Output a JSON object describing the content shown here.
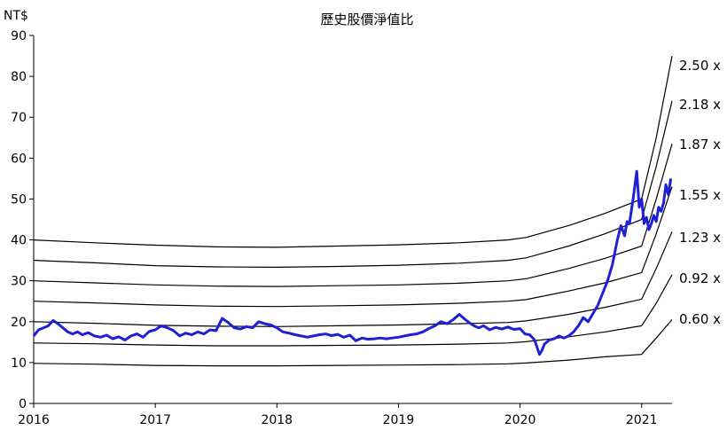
{
  "chart_data": {
    "type": "line",
    "title": "歷史股價淨值比",
    "ylabel": "NT$",
    "xlabel": "",
    "ylim": [
      0,
      90
    ],
    "yticks": [
      0,
      10,
      20,
      30,
      40,
      50,
      60,
      70,
      80,
      90
    ],
    "xlim": [
      2016.0,
      2021.25
    ],
    "xticks": [
      2016,
      2017,
      2018,
      2019,
      2020,
      2021
    ],
    "grid": false,
    "colors": {
      "price": "#1f1fd6",
      "band": "#000000"
    },
    "price_series": {
      "x": [
        2016.0,
        2016.04,
        2016.08,
        2016.12,
        2016.16,
        2016.2,
        2016.24,
        2016.28,
        2016.32,
        2016.36,
        2016.4,
        2016.45,
        2016.5,
        2016.55,
        2016.6,
        2016.65,
        2016.7,
        2016.75,
        2016.8,
        2016.85,
        2016.9,
        2016.95,
        2017.0,
        2017.05,
        2017.1,
        2017.15,
        2017.2,
        2017.25,
        2017.3,
        2017.35,
        2017.4,
        2017.45,
        2017.5,
        2017.55,
        2017.6,
        2017.65,
        2017.7,
        2017.75,
        2017.8,
        2017.85,
        2017.9,
        2017.95,
        2018.0,
        2018.05,
        2018.1,
        2018.15,
        2018.2,
        2018.25,
        2018.3,
        2018.35,
        2018.4,
        2018.45,
        2018.5,
        2018.55,
        2018.6,
        2018.65,
        2018.7,
        2018.75,
        2018.8,
        2018.85,
        2018.9,
        2018.95,
        2019.0,
        2019.05,
        2019.1,
        2019.15,
        2019.2,
        2019.25,
        2019.3,
        2019.35,
        2019.4,
        2019.45,
        2019.5,
        2019.55,
        2019.58,
        2019.62,
        2019.66,
        2019.7,
        2019.75,
        2019.8,
        2019.85,
        2019.9,
        2019.95,
        2020.0,
        2020.04,
        2020.08,
        2020.12,
        2020.16,
        2020.18,
        2020.2,
        2020.24,
        2020.28,
        2020.32,
        2020.36,
        2020.4,
        2020.44,
        2020.48,
        2020.52,
        2020.56,
        2020.6,
        2020.64,
        2020.68,
        2020.72,
        2020.76,
        2020.8,
        2020.83,
        2020.86,
        2020.88,
        2020.9,
        2020.93,
        2020.96,
        2020.98,
        2021.0,
        2021.02,
        2021.04,
        2021.06,
        2021.08,
        2021.1,
        2021.12,
        2021.14,
        2021.16,
        2021.18,
        2021.2,
        2021.22,
        2021.24
      ],
      "y": [
        16.5,
        18.0,
        18.5,
        19.0,
        20.3,
        19.5,
        18.5,
        17.5,
        17.0,
        17.5,
        16.8,
        17.3,
        16.5,
        16.2,
        16.7,
        15.8,
        16.3,
        15.5,
        16.5,
        17.0,
        16.2,
        17.6,
        18.0,
        19.0,
        18.5,
        17.8,
        16.5,
        17.2,
        16.8,
        17.5,
        17.0,
        18.0,
        17.8,
        20.8,
        19.8,
        18.5,
        18.2,
        18.8,
        18.5,
        20.0,
        19.5,
        19.2,
        18.5,
        17.5,
        17.2,
        16.8,
        16.5,
        16.2,
        16.5,
        16.8,
        17.0,
        16.6,
        16.9,
        16.2,
        16.7,
        15.3,
        16.0,
        15.7,
        15.8,
        16.0,
        15.8,
        16.0,
        16.2,
        16.5,
        16.8,
        17.0,
        17.5,
        18.3,
        19.0,
        20.0,
        19.5,
        20.5,
        21.8,
        20.5,
        19.8,
        19.0,
        18.5,
        19.0,
        18.0,
        18.6,
        18.2,
        18.7,
        18.1,
        18.3,
        17.0,
        16.8,
        15.5,
        12.0,
        13.0,
        14.5,
        15.5,
        15.8,
        16.5,
        16.0,
        16.5,
        17.5,
        19.0,
        21.0,
        20.0,
        22.0,
        24.0,
        27.0,
        30.0,
        34.0,
        40.0,
        43.5,
        41.0,
        44.5,
        44.0,
        50.0,
        56.8,
        48.0,
        50.0,
        44.0,
        45.5,
        42.5,
        44.0,
        46.0,
        44.5,
        48.0,
        47.0,
        49.0,
        53.5,
        51.0,
        55.0
      ]
    },
    "bands": [
      {
        "label": "2.50 x",
        "y": [
          40.0,
          39.3,
          38.7,
          38.3,
          38.2,
          38.5,
          38.8,
          39.3,
          40.0,
          40.6,
          43.5,
          46.5,
          50.0,
          65.0,
          85.0
        ]
      },
      {
        "label": "2.18 x",
        "y": [
          35.0,
          34.4,
          33.7,
          33.4,
          33.3,
          33.5,
          33.8,
          34.3,
          35.0,
          35.6,
          38.5,
          41.5,
          45.0,
          58.0,
          74.0
        ]
      },
      {
        "label": "1.87 x",
        "y": [
          30.0,
          29.5,
          29.0,
          28.7,
          28.6,
          28.8,
          29.0,
          29.4,
          30.0,
          30.5,
          33.0,
          35.5,
          38.5,
          50.0,
          63.5
        ]
      },
      {
        "label": "1.55 x",
        "y": [
          25.0,
          24.6,
          24.1,
          23.8,
          23.7,
          23.9,
          24.1,
          24.5,
          25.0,
          25.4,
          27.5,
          29.5,
          32.0,
          41.5,
          53.0
        ]
      },
      {
        "label": "1.23 x",
        "y": [
          20.0,
          19.6,
          19.1,
          18.9,
          18.8,
          19.0,
          19.2,
          19.5,
          19.8,
          20.2,
          21.8,
          23.5,
          25.5,
          33.0,
          42.0
        ]
      },
      {
        "label": "0.92 x",
        "y": [
          14.8,
          14.6,
          14.3,
          14.1,
          14.1,
          14.2,
          14.3,
          14.5,
          14.8,
          15.1,
          16.3,
          17.5,
          19.0,
          24.5,
          31.5
        ]
      },
      {
        "label": "0.60 x",
        "y": [
          9.8,
          9.6,
          9.3,
          9.2,
          9.2,
          9.3,
          9.4,
          9.5,
          9.7,
          9.9,
          10.6,
          11.4,
          12.0,
          16.0,
          20.5
        ]
      }
    ],
    "band_x": [
      2016.0,
      2016.5,
      2017.0,
      2017.5,
      2018.0,
      2018.5,
      2019.0,
      2019.5,
      2019.9,
      2020.05,
      2020.4,
      2020.7,
      2021.0,
      2021.12,
      2021.25
    ]
  }
}
